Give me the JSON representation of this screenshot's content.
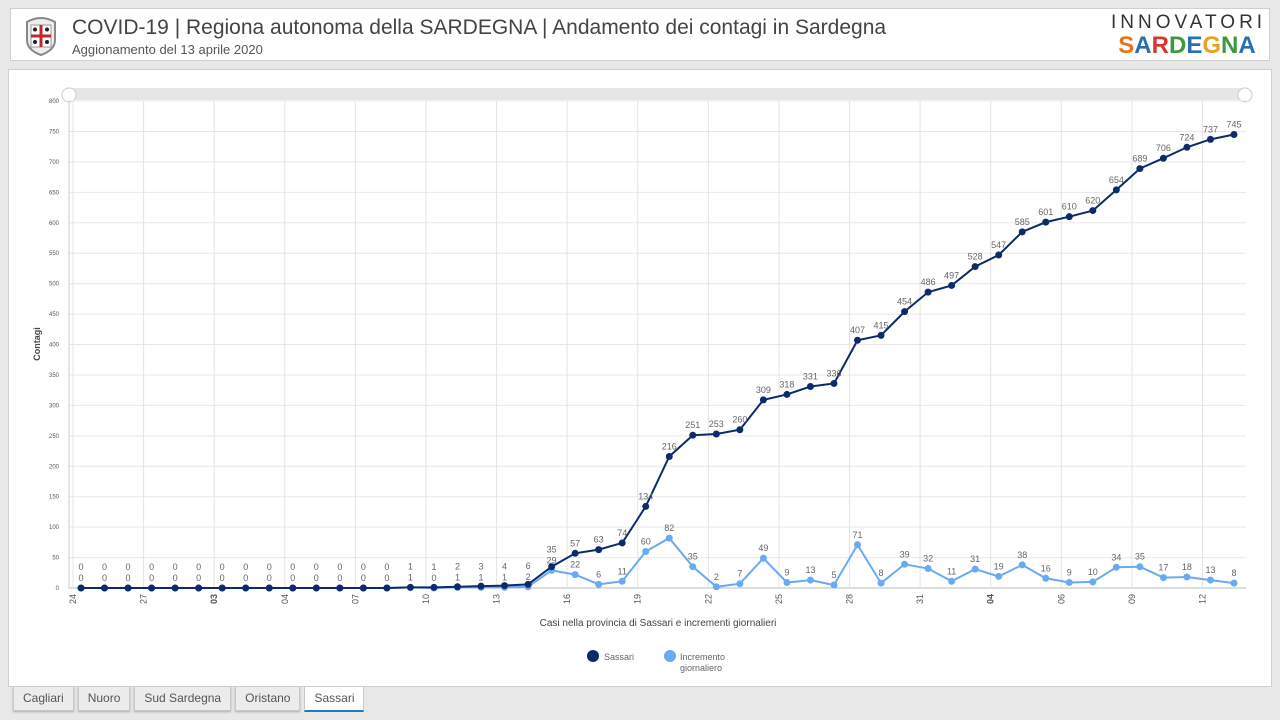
{
  "header": {
    "title": "COVID-19 | Regiona autonoma della SARDEGNA | Andamento dei contagi in Sardegna",
    "subtitle": "Aggionamento del 13 aprile 2020",
    "logo_line1": "INNOVATORI",
    "logo_line2": "SARDEGNA"
  },
  "tabs": [
    {
      "label": "Cagliari",
      "active": false
    },
    {
      "label": "Nuoro",
      "active": false
    },
    {
      "label": "Sud Sardegna",
      "active": false
    },
    {
      "label": "Oristano",
      "active": false
    },
    {
      "label": "Sassari",
      "active": true
    }
  ],
  "chart_data": {
    "type": "line",
    "title": "",
    "xlabel": "Casi nella provincia di Sassari e incrementi giornalieri",
    "ylabel": "Contagi",
    "ylim": [
      0,
      800
    ],
    "yticks": [
      0,
      50,
      100,
      150,
      200,
      250,
      300,
      350,
      400,
      450,
      500,
      550,
      600,
      650,
      700,
      750,
      800
    ],
    "xtick_labels": [
      {
        "index": 0,
        "label": "24",
        "bold": false
      },
      {
        "index": 3,
        "label": "27",
        "bold": false
      },
      {
        "index": 6,
        "label": "03",
        "bold": true
      },
      {
        "index": 9,
        "label": "04",
        "bold": false
      },
      {
        "index": 12,
        "label": "07",
        "bold": false
      },
      {
        "index": 15,
        "label": "10",
        "bold": false
      },
      {
        "index": 18,
        "label": "13",
        "bold": false
      },
      {
        "index": 21,
        "label": "16",
        "bold": false
      },
      {
        "index": 24,
        "label": "19",
        "bold": false
      },
      {
        "index": 27,
        "label": "22",
        "bold": false
      },
      {
        "index": 30,
        "label": "25",
        "bold": false
      },
      {
        "index": 33,
        "label": "28",
        "bold": false
      },
      {
        "index": 36,
        "label": "31",
        "bold": false
      },
      {
        "index": 39,
        "label": "04",
        "bold": true
      },
      {
        "index": 42,
        "label": "06",
        "bold": false
      },
      {
        "index": 45,
        "label": "09",
        "bold": false
      },
      {
        "index": 48,
        "label": "12",
        "bold": false
      }
    ],
    "series": [
      {
        "name": "Sassari",
        "color": "#0d2a6b",
        "values": [
          0,
          0,
          0,
          0,
          0,
          0,
          0,
          0,
          0,
          0,
          0,
          0,
          0,
          0,
          1,
          1,
          2,
          3,
          4,
          6,
          35,
          57,
          63,
          74,
          134,
          216,
          251,
          253,
          260,
          309,
          318,
          331,
          336,
          407,
          415,
          454,
          486,
          497,
          528,
          547,
          585,
          601,
          610,
          620,
          654,
          689,
          706,
          724,
          737,
          745
        ]
      },
      {
        "name": "Incremento giornaliero",
        "color": "#6aaaf0",
        "values": [
          0,
          0,
          0,
          0,
          0,
          0,
          0,
          0,
          0,
          0,
          0,
          0,
          0,
          0,
          1,
          0,
          1,
          1,
          1,
          2,
          29,
          22,
          6,
          11,
          60,
          82,
          35,
          2,
          7,
          49,
          9,
          13,
          5,
          71,
          8,
          39,
          32,
          11,
          31,
          19,
          38,
          16,
          9,
          10,
          34,
          35,
          17,
          18,
          13,
          8
        ]
      }
    ],
    "legend": "bottom",
    "grid": true
  }
}
